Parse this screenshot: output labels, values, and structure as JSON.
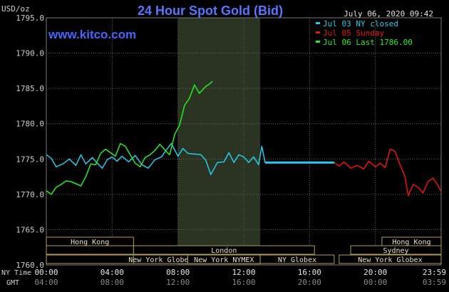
{
  "header": {
    "unit": "USD/oz",
    "title": "24 Hour Spot Gold (Bid)",
    "timestamp": "July 06, 2020 09:42",
    "site": "www.kitco.com"
  },
  "legend": [
    {
      "label": "Jul 03 NY closed",
      "color": "#22ccee"
    },
    {
      "label": "Jul 05 Sunday",
      "color": "#ee1111"
    },
    {
      "label": "Jul 06 Last 1786.00",
      "color": "#22ee22"
    }
  ],
  "axes": {
    "x_row1_label": "NY Time",
    "x_row2_label": "GMT",
    "x_ticks_ny": [
      "00:00",
      "04:00",
      "08:00",
      "12:00",
      "16:00",
      "20:00",
      "23:59"
    ],
    "x_ticks_gmt": [
      "04:00",
      "08:00",
      "12:00",
      "16:00",
      "20:00",
      "00:00",
      "03:59"
    ],
    "y_ticks": [
      "1795.0",
      "1790.0",
      "1785.0",
      "1780.0",
      "1775.0",
      "1770.0",
      "1765.0",
      "1760.0"
    ]
  },
  "sessions": {
    "hong_kong_left": "Hong Kong",
    "london": "London",
    "new_york_globex_left": "New York Globex",
    "new_york_nymex": "New York NYMEX",
    "ny_globex": "NY Globex",
    "hong_kong_right": "Hong Kong",
    "sydney": "Sydney",
    "new_york_globex_right": "New York Globex"
  },
  "chart_data": {
    "type": "line",
    "title": "24 Hour Spot Gold (Bid)",
    "ylabel": "USD/oz",
    "xlabel": "NY Time",
    "ylim": [
      1760,
      1795
    ],
    "xlim_hours": [
      0,
      24
    ],
    "grid": true,
    "legend_position": "top-right",
    "highlight_band_hours": [
      8,
      13
    ],
    "series": [
      {
        "name": "Jul 03 NY closed",
        "color": "#22ccee",
        "x": [
          0.0,
          0.3,
          0.6,
          1.0,
          1.4,
          1.8,
          2.1,
          2.4,
          2.8,
          3.1,
          3.4,
          3.7,
          4.0,
          4.3,
          4.6,
          5.0,
          5.4,
          5.8,
          6.2,
          6.6,
          7.0,
          7.3,
          7.6,
          8.0,
          8.3,
          8.6,
          9.0,
          9.4,
          9.7,
          10.0,
          10.4,
          10.8,
          11.1,
          11.4,
          11.7,
          12.0,
          12.3,
          12.6,
          12.9,
          13.1,
          13.3,
          14.0,
          15.0,
          16.0,
          17.0,
          17.5
        ],
        "values": [
          1775.6,
          1775.1,
          1773.9,
          1774.3,
          1775.0,
          1774.1,
          1775.6,
          1774.3,
          1775.2,
          1774.4,
          1773.7,
          1774.9,
          1775.3,
          1774.7,
          1775.4,
          1774.6,
          1775.5,
          1774.2,
          1773.7,
          1774.9,
          1775.3,
          1776.3,
          1777.2,
          1775.4,
          1776.5,
          1775.8,
          1775.7,
          1775.6,
          1774.8,
          1772.8,
          1774.5,
          1774.6,
          1775.9,
          1774.5,
          1775.6,
          1775.3,
          1774.5,
          1775.3,
          1774.2,
          1776.8,
          1774.5,
          1774.5,
          1774.5,
          1774.5,
          1774.5,
          1774.5
        ]
      },
      {
        "name": "Jul 05 Sunday",
        "color": "#ee1111",
        "x": [
          17.5,
          17.8,
          18.1,
          18.5,
          18.9,
          19.3,
          19.6,
          20.0,
          20.3,
          20.6,
          20.9,
          21.2,
          21.5,
          21.8,
          22.0,
          22.3,
          22.6,
          22.9,
          23.2,
          23.5,
          23.8,
          24.0
        ],
        "values": [
          1774.5,
          1774.0,
          1774.6,
          1773.7,
          1774.1,
          1773.6,
          1774.7,
          1773.9,
          1774.4,
          1773.8,
          1776.4,
          1776.1,
          1774.2,
          1772.5,
          1769.8,
          1771.4,
          1771.0,
          1770.2,
          1771.8,
          1772.3,
          1771.3,
          1770.4
        ]
      },
      {
        "name": "Jul 06 Last 1786.00",
        "color": "#22ee22",
        "x": [
          0.0,
          0.3,
          0.6,
          0.9,
          1.2,
          1.5,
          1.8,
          2.1,
          2.4,
          2.7,
          3.0,
          3.3,
          3.6,
          3.9,
          4.2,
          4.5,
          4.8,
          5.1,
          5.4,
          5.7,
          6.0,
          6.3,
          6.6,
          6.9,
          7.2,
          7.5,
          7.8,
          8.1,
          8.4,
          8.7,
          9.0,
          9.3,
          9.5,
          9.7,
          9.9,
          10.1
        ],
        "values": [
          1770.5,
          1770.0,
          1771.0,
          1771.4,
          1771.9,
          1771.8,
          1771.5,
          1771.2,
          1772.5,
          1774.3,
          1774.2,
          1775.8,
          1776.4,
          1775.9,
          1775.4,
          1777.2,
          1776.8,
          1775.6,
          1774.4,
          1773.9,
          1775.2,
          1775.6,
          1776.2,
          1777.1,
          1776.3,
          1775.6,
          1778.5,
          1779.8,
          1782.6,
          1783.6,
          1785.5,
          1784.3,
          1784.8,
          1785.3,
          1785.6,
          1786.0
        ]
      }
    ]
  }
}
